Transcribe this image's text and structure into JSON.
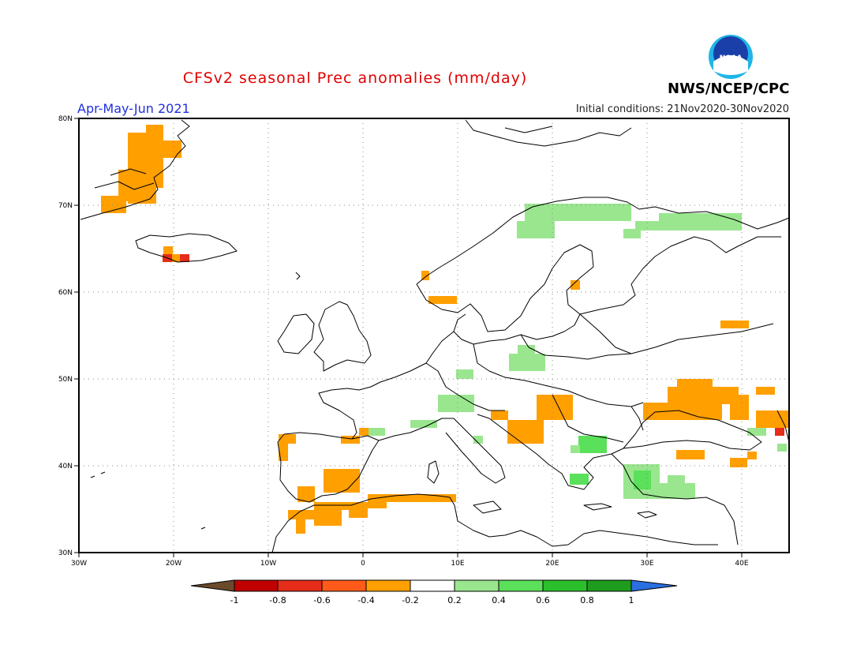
{
  "header": {
    "title": "CFSv2 seasonal Prec anomalies (mm/day)",
    "period": "Apr-May-Jun 2021",
    "initial_conditions": "Initial conditions: 21Nov2020-30Nov2020",
    "agency": "NWS/NCEP/CPC",
    "logo_text": "NOAA"
  },
  "map": {
    "lon_range": [
      -30,
      45
    ],
    "lat_range": [
      30,
      80
    ],
    "lon_ticks": [
      "30W",
      "20W",
      "10W",
      "0",
      "10E",
      "20E",
      "30E",
      "40E"
    ],
    "lat_ticks": [
      "30N",
      "40N",
      "50N",
      "60N",
      "70N",
      "80N"
    ]
  },
  "colorbar": {
    "labels": [
      "-1",
      "-0.8",
      "-0.6",
      "-0.4",
      "-0.2",
      "0.2",
      "0.4",
      "0.6",
      "0.8",
      "1"
    ],
    "colors": [
      "#6b4a2b",
      "#c00000",
      "#e52d1a",
      "#ff5a1a",
      "#ff9f00",
      "#ffffff",
      "#9ae68f",
      "#5ae05a",
      "#2cbf2c",
      "#1e9c1e",
      "#2b6fe0"
    ]
  }
}
